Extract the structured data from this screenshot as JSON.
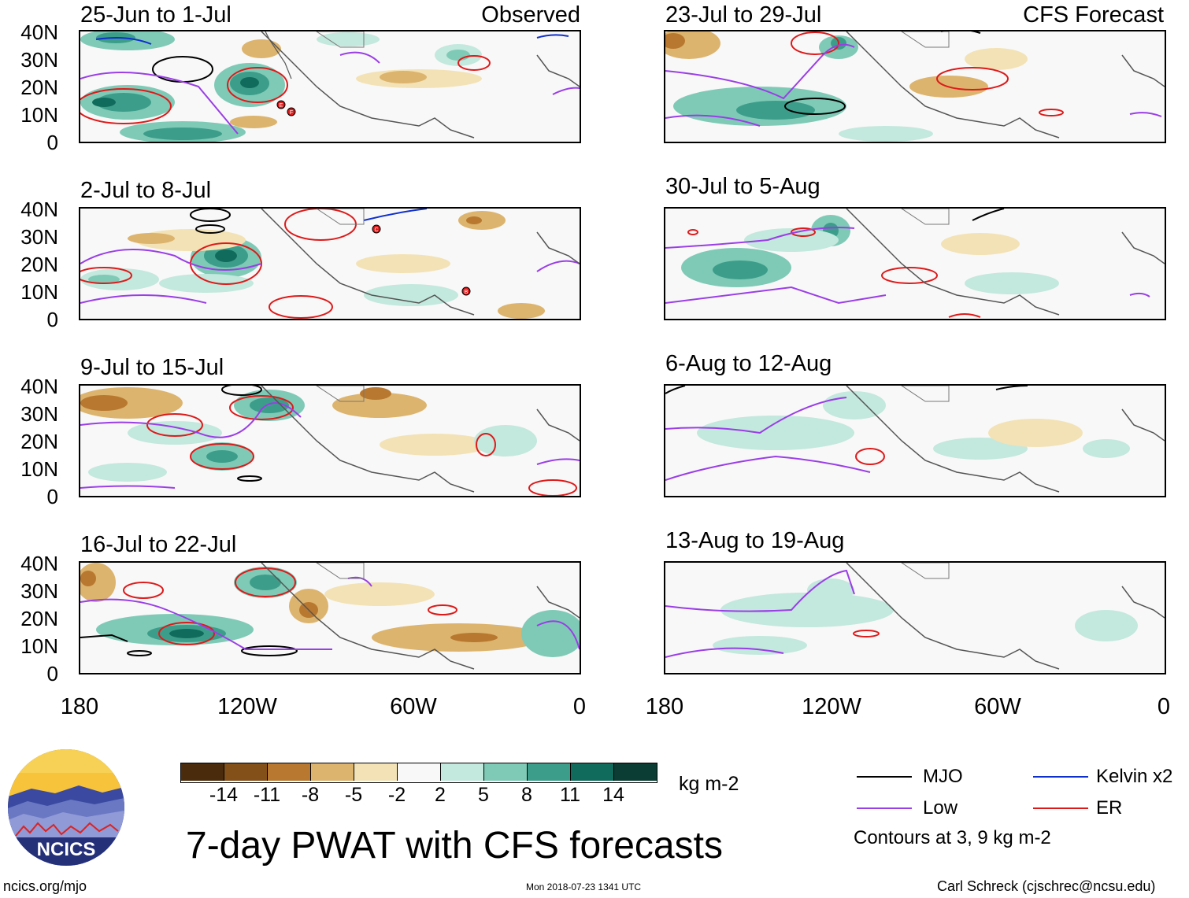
{
  "figure_title": "7-day PWAT with CFS forecasts",
  "observed_label": "Observed",
  "forecast_label": "CFS Forecast",
  "latitude_labels": [
    "40N",
    "30N",
    "20N",
    "10N",
    "0"
  ],
  "longitude_labels": [
    "180",
    "120W",
    "60W",
    "0"
  ],
  "observed_periods": [
    "25-Jun to 1-Jul",
    "2-Jul to 8-Jul",
    "9-Jul to 15-Jul",
    "16-Jul to 22-Jul"
  ],
  "forecast_periods": [
    "23-Jul to 29-Jul",
    "30-Jul to 5-Aug",
    "6-Aug to 12-Aug",
    "13-Aug to 19-Aug"
  ],
  "colorbar": {
    "units": "kg m-2",
    "ticks": [
      "-14",
      "-11",
      "-8",
      "-5",
      "-2",
      "2",
      "5",
      "8",
      "11",
      "14"
    ],
    "colors": [
      "#4a2c0c",
      "#84501a",
      "#b9782f",
      "#dcb46e",
      "#f3e2b6",
      "#f8f8f8",
      "#c3e8dd",
      "#7fcab6",
      "#3c9e8a",
      "#116b5c",
      "#0b3d34"
    ]
  },
  "legend": {
    "items": [
      {
        "label": "MJO",
        "color": "#000000"
      },
      {
        "label": "Kelvin x2",
        "color": "#1030cc"
      },
      {
        "label": "Low",
        "color": "#9a3ee6"
      },
      {
        "label": "ER",
        "color": "#dd1a1a"
      }
    ],
    "note": "Contours at 3, 9 kg m-2"
  },
  "logo_text": "NCICS",
  "footer": {
    "url": "ncics.org/mjo",
    "timestamp": "Mon 2018-07-23 1341 UTC",
    "credit": "Carl Schreck (cjschrec@ncsu.edu)"
  },
  "storm_markers": {
    "panel0": [
      "E",
      "F"
    ],
    "panel1": [
      "C",
      "B"
    ]
  }
}
